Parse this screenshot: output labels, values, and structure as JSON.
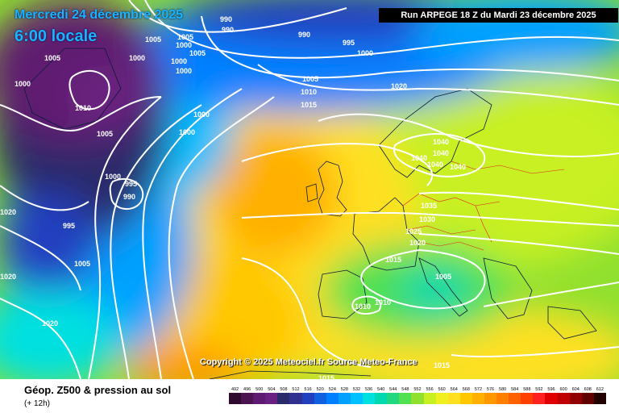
{
  "header": {
    "date": "Mercredi 24 décembre 2025",
    "time": "6:00 locale",
    "run": "Run ARPEGE 18 Z du Mardi 23 décembre 2025"
  },
  "copyright": "Copyright © 2025 Meteociel.fr  Source Meteo-France",
  "footer": {
    "title": "Géop. Z500 & pression au sol",
    "subtitle": "(+ 12h)"
  },
  "scale": {
    "values": [
      492,
      496,
      500,
      504,
      508,
      512,
      516,
      520,
      524,
      528,
      532,
      536,
      540,
      544,
      548,
      552,
      556,
      560,
      564,
      568,
      572,
      576,
      580,
      584,
      588,
      592,
      596,
      600,
      604,
      608,
      612
    ],
    "colors": [
      "#2e0a2e",
      "#4b1450",
      "#5e1a70",
      "#6a2080",
      "#2a2a6a",
      "#303090",
      "#2040c0",
      "#1060e0",
      "#0080ff",
      "#00a0ff",
      "#00c0ff",
      "#00e0e0",
      "#00d8b0",
      "#20d880",
      "#50e050",
      "#90e030",
      "#c8f020",
      "#f0f020",
      "#ffe020",
      "#ffc800",
      "#ffb000",
      "#ff9800",
      "#ff8000",
      "#ff6000",
      "#ff4000",
      "#ff2020",
      "#e00000",
      "#c00000",
      "#900000",
      "#600000",
      "#200000"
    ]
  },
  "isobar_labels": [
    {
      "text": "990"
    },
    {
      "text": "990"
    },
    {
      "text": "990"
    },
    {
      "text": "995"
    },
    {
      "text": "1000"
    },
    {
      "text": "1005"
    },
    {
      "text": "1005"
    },
    {
      "text": "1000"
    },
    {
      "text": "1005"
    },
    {
      "text": "1000"
    },
    {
      "text": "1000"
    },
    {
      "text": "1005"
    },
    {
      "text": "1000"
    },
    {
      "text": "1000"
    },
    {
      "text": "1000"
    },
    {
      "text": "1010"
    },
    {
      "text": "1005"
    },
    {
      "text": "1005"
    },
    {
      "text": "1000"
    },
    {
      "text": "1010"
    },
    {
      "text": "1015"
    },
    {
      "text": "1020"
    },
    {
      "text": "1000"
    },
    {
      "text": "995"
    },
    {
      "text": "990"
    },
    {
      "text": "1020"
    },
    {
      "text": "995"
    },
    {
      "text": "1005"
    },
    {
      "text": "1020"
    },
    {
      "text": "1020"
    },
    {
      "text": "1040"
    },
    {
      "text": "1040"
    },
    {
      "text": "1040"
    },
    {
      "text": "1040"
    },
    {
      "text": "1040"
    },
    {
      "text": "1035"
    },
    {
      "text": "1030"
    },
    {
      "text": "1025"
    },
    {
      "text": "1020"
    },
    {
      "text": "1015"
    },
    {
      "text": "1005"
    },
    {
      "text": "1010"
    },
    {
      "text": "1010"
    },
    {
      "text": "1015"
    },
    {
      "text": "1015"
    }
  ]
}
